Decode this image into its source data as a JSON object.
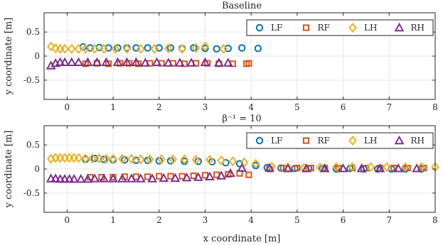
{
  "colors": {
    "LF": "#0072BD",
    "RF": "#D95319",
    "LH": "#EDB120",
    "RH": "#7E2F8E",
    "grid": "#e6e6e6",
    "axis": "#262626"
  },
  "chart_data": [
    {
      "type": "scatter",
      "title": "Baseline",
      "xlabel": "",
      "ylabel": "y coordinate [m]",
      "xlim": [
        -0.5,
        8
      ],
      "ylim": [
        -0.9,
        0.9
      ],
      "xticks": [
        0,
        1,
        2,
        3,
        4,
        5,
        6,
        7,
        8
      ],
      "yticks": [
        -0.5,
        0,
        0.5
      ],
      "grid": true,
      "legend": {
        "placement": "top-right",
        "orientation": "horizontal"
      },
      "series": [
        {
          "name": "LF",
          "marker": "circle",
          "x": [
            0.35,
            0.5,
            0.7,
            0.9,
            1.1,
            1.3,
            1.5,
            1.75,
            2.0,
            2.25,
            2.5,
            2.75,
            3.0,
            3.25,
            3.5,
            3.8,
            4.15
          ],
          "y": [
            0.19,
            0.17,
            0.18,
            0.17,
            0.17,
            0.17,
            0.17,
            0.17,
            0.17,
            0.17,
            0.16,
            0.17,
            0.16,
            0.15,
            0.16,
            0.17,
            0.16
          ]
        },
        {
          "name": "RF",
          "marker": "square",
          "x": [
            0.4,
            0.65,
            0.9,
            1.15,
            1.35,
            1.55,
            1.8,
            2.05,
            2.3,
            2.55,
            2.8,
            3.05,
            3.3,
            3.6,
            3.9,
            3.95
          ],
          "y": [
            -0.16,
            -0.15,
            -0.16,
            -0.15,
            -0.15,
            -0.16,
            -0.15,
            -0.15,
            -0.15,
            -0.16,
            -0.15,
            -0.15,
            -0.16,
            -0.16,
            -0.16,
            -0.15
          ]
        },
        {
          "name": "LH",
          "marker": "diamond",
          "x": [
            -0.35,
            -0.25,
            -0.15,
            -0.05,
            0.1,
            0.25,
            0.4,
            0.6,
            0.8,
            1.05,
            1.3,
            1.6,
            1.9,
            2.2,
            2.5,
            2.8,
            3.0,
            3.4
          ],
          "y": [
            0.2,
            0.16,
            0.15,
            0.15,
            0.15,
            0.15,
            0.15,
            0.15,
            0.15,
            0.15,
            0.15,
            0.15,
            0.15,
            0.16,
            0.15,
            0.17,
            0.2,
            0.15
          ]
        },
        {
          "name": "RH",
          "marker": "triangle",
          "x": [
            -0.35,
            -0.25,
            -0.15,
            -0.05,
            0.1,
            0.25,
            0.45,
            0.65,
            0.85,
            1.1,
            1.3,
            1.5,
            1.7,
            1.95,
            2.2,
            2.45,
            2.7,
            3.0,
            3.3,
            3.5
          ],
          "y": [
            -0.2,
            -0.15,
            -0.13,
            -0.13,
            -0.13,
            -0.13,
            -0.13,
            -0.13,
            -0.13,
            -0.13,
            -0.13,
            -0.13,
            -0.14,
            -0.13,
            -0.14,
            -0.14,
            -0.14,
            -0.13,
            -0.14,
            -0.14
          ]
        }
      ]
    },
    {
      "type": "scatter",
      "title": "β⁻¹ = 10",
      "xlabel": "x coordinate [m]",
      "ylabel": "y coordinate [m]",
      "xlim": [
        -0.5,
        8
      ],
      "ylim": [
        -0.9,
        0.9
      ],
      "xticks": [
        0,
        1,
        2,
        3,
        4,
        5,
        6,
        7,
        8
      ],
      "yticks": [
        -0.5,
        0,
        0.5
      ],
      "grid": true,
      "legend": {
        "placement": "top-right",
        "orientation": "horizontal"
      },
      "series": [
        {
          "name": "LF",
          "marker": "circle",
          "x": [
            0.4,
            0.6,
            0.8,
            1.0,
            1.25,
            1.5,
            1.75,
            2.0,
            2.25,
            2.55,
            2.85,
            3.15,
            3.45,
            3.75,
            4.1,
            4.35,
            4.65,
            4.95,
            5.25,
            5.55,
            5.85,
            6.15,
            6.45,
            6.75,
            7.05,
            7.35,
            7.7
          ],
          "y": [
            0.2,
            0.22,
            0.2,
            0.19,
            0.19,
            0.18,
            0.18,
            0.17,
            0.17,
            0.16,
            0.16,
            0.15,
            0.13,
            0.11,
            0.07,
            0.03,
            0.02,
            0.01,
            0.01,
            0.01,
            0.0,
            0.01,
            0.0,
            0.0,
            0.0,
            0.0,
            0.0
          ]
        },
        {
          "name": "RF",
          "marker": "square",
          "x": [
            0.5,
            0.75,
            1.0,
            1.25,
            1.5,
            1.75,
            2.0,
            2.25,
            2.5,
            2.75,
            3.0,
            3.25,
            3.5,
            3.75,
            3.95,
            4.4,
            4.7,
            5.0,
            5.3,
            5.6,
            5.9,
            6.2,
            6.5,
            6.8,
            7.1,
            7.4,
            7.75
          ],
          "y": [
            -0.17,
            -0.17,
            -0.17,
            -0.16,
            -0.16,
            -0.16,
            -0.15,
            -0.15,
            -0.15,
            -0.14,
            -0.13,
            -0.12,
            -0.11,
            -0.09,
            -0.12,
            0.0,
            0.02,
            0.02,
            0.02,
            0.02,
            0.02,
            0.02,
            0.02,
            0.02,
            0.02,
            0.02,
            0.02
          ]
        },
        {
          "name": "LH",
          "marker": "diamond",
          "x": [
            -0.35,
            -0.25,
            -0.15,
            -0.05,
            0.05,
            0.15,
            0.25,
            0.4,
            0.55,
            0.7,
            0.85,
            1.0,
            1.2,
            1.4,
            1.6,
            1.8,
            2.05,
            2.3,
            2.55,
            2.8,
            3.1,
            3.35,
            3.6,
            3.85,
            4.1,
            4.45,
            4.8,
            5.15,
            5.5,
            5.85,
            6.2,
            6.6,
            6.95,
            7.35,
            7.7,
            8.0
          ],
          "y": [
            0.21,
            0.23,
            0.23,
            0.23,
            0.23,
            0.23,
            0.23,
            0.22,
            0.22,
            0.22,
            0.21,
            0.21,
            0.21,
            0.21,
            0.2,
            0.2,
            0.2,
            0.2,
            0.2,
            0.19,
            0.19,
            0.18,
            0.16,
            0.14,
            0.11,
            0.05,
            0.03,
            0.02,
            0.03,
            0.04,
            0.04,
            0.04,
            0.04,
            0.04,
            0.04,
            0.04
          ]
        },
        {
          "name": "RH",
          "marker": "triangle",
          "x": [
            -0.35,
            -0.25,
            -0.15,
            -0.05,
            0.05,
            0.15,
            0.3,
            0.45,
            0.6,
            0.8,
            1.0,
            1.2,
            1.4,
            1.6,
            1.85,
            2.1,
            2.35,
            2.6,
            2.85,
            3.1,
            3.35,
            3.55,
            3.8,
            4.4,
            4.8,
            5.2,
            5.6,
            6.0,
            6.4,
            6.8,
            7.2,
            7.6
          ],
          "y": [
            -0.2,
            -0.2,
            -0.21,
            -0.21,
            -0.21,
            -0.21,
            -0.21,
            -0.21,
            -0.2,
            -0.2,
            -0.2,
            -0.2,
            -0.2,
            -0.2,
            -0.2,
            -0.19,
            -0.19,
            -0.18,
            -0.17,
            -0.16,
            -0.14,
            -0.09,
            0.02,
            0.02,
            0.01,
            0.01,
            0.01,
            0.01,
            0.01,
            0.01,
            0.01,
            0.01
          ]
        }
      ]
    }
  ]
}
